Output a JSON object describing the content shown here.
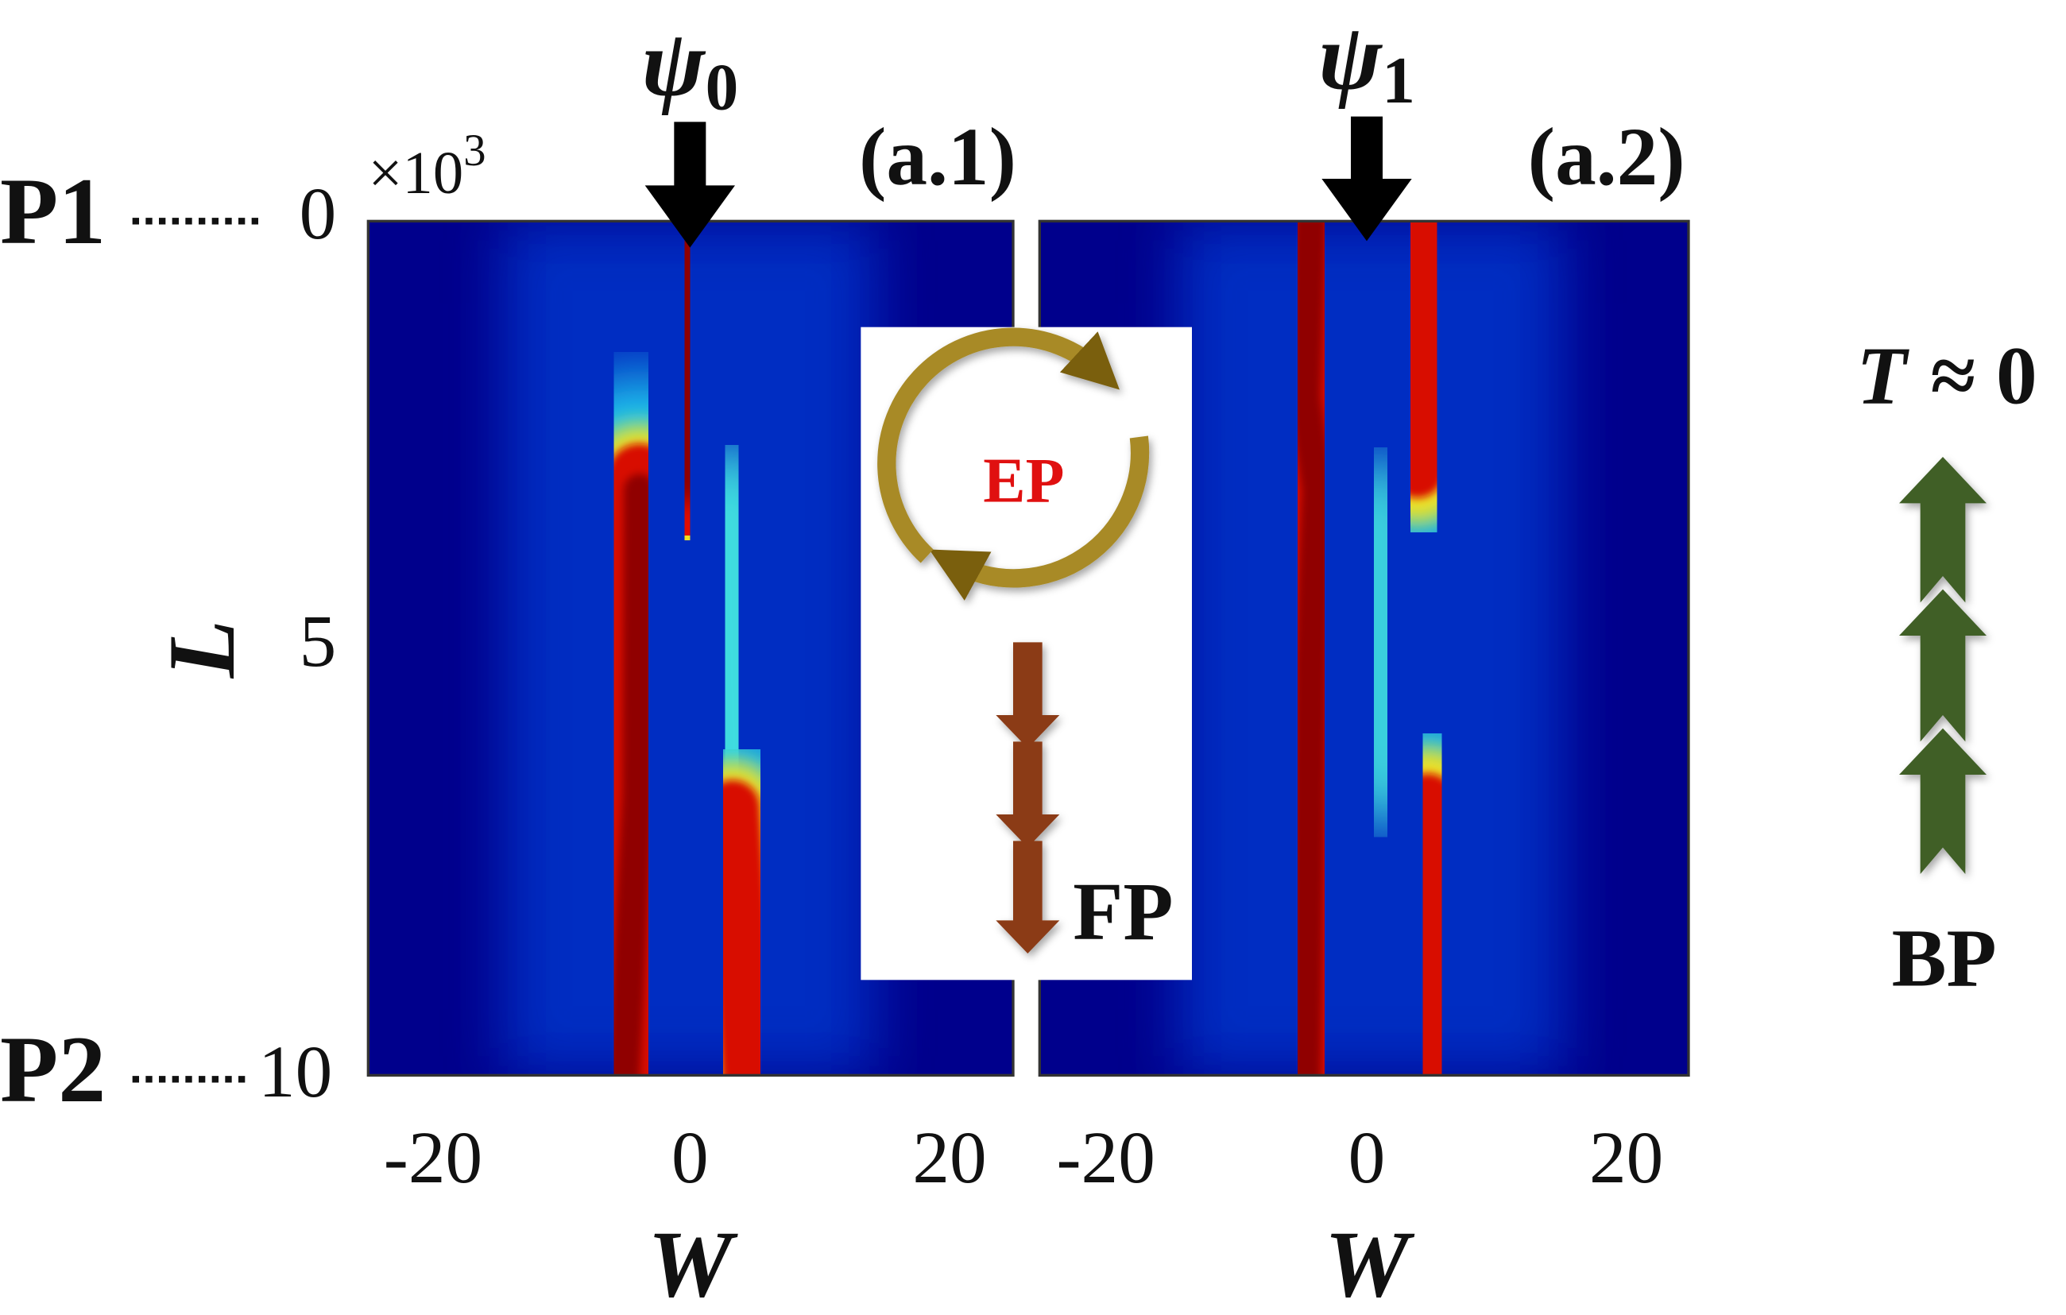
{
  "axis_left": {
    "ports": [
      "P1",
      "P2"
    ],
    "scale": {
      "base": "×10",
      "exponent": "3"
    },
    "ticks": [
      "0",
      "5",
      "10"
    ],
    "label": "L"
  },
  "panels": [
    {
      "tag": "(a.1)",
      "mode": {
        "symbol": "ψ",
        "subscript": "0"
      },
      "x_ticks": [
        "-20",
        "0",
        "20"
      ],
      "x_label": "W"
    },
    {
      "tag": "(a.2)",
      "mode": {
        "symbol": "ψ",
        "subscript": "1"
      },
      "x_ticks": [
        "-20",
        "0",
        "20"
      ],
      "x_label": "W"
    }
  ],
  "inset": {
    "center": "EP",
    "end": "FP"
  },
  "side": {
    "top": {
      "symbol": "T",
      "relation": "≈ 0"
    },
    "bottom": "BP"
  }
}
